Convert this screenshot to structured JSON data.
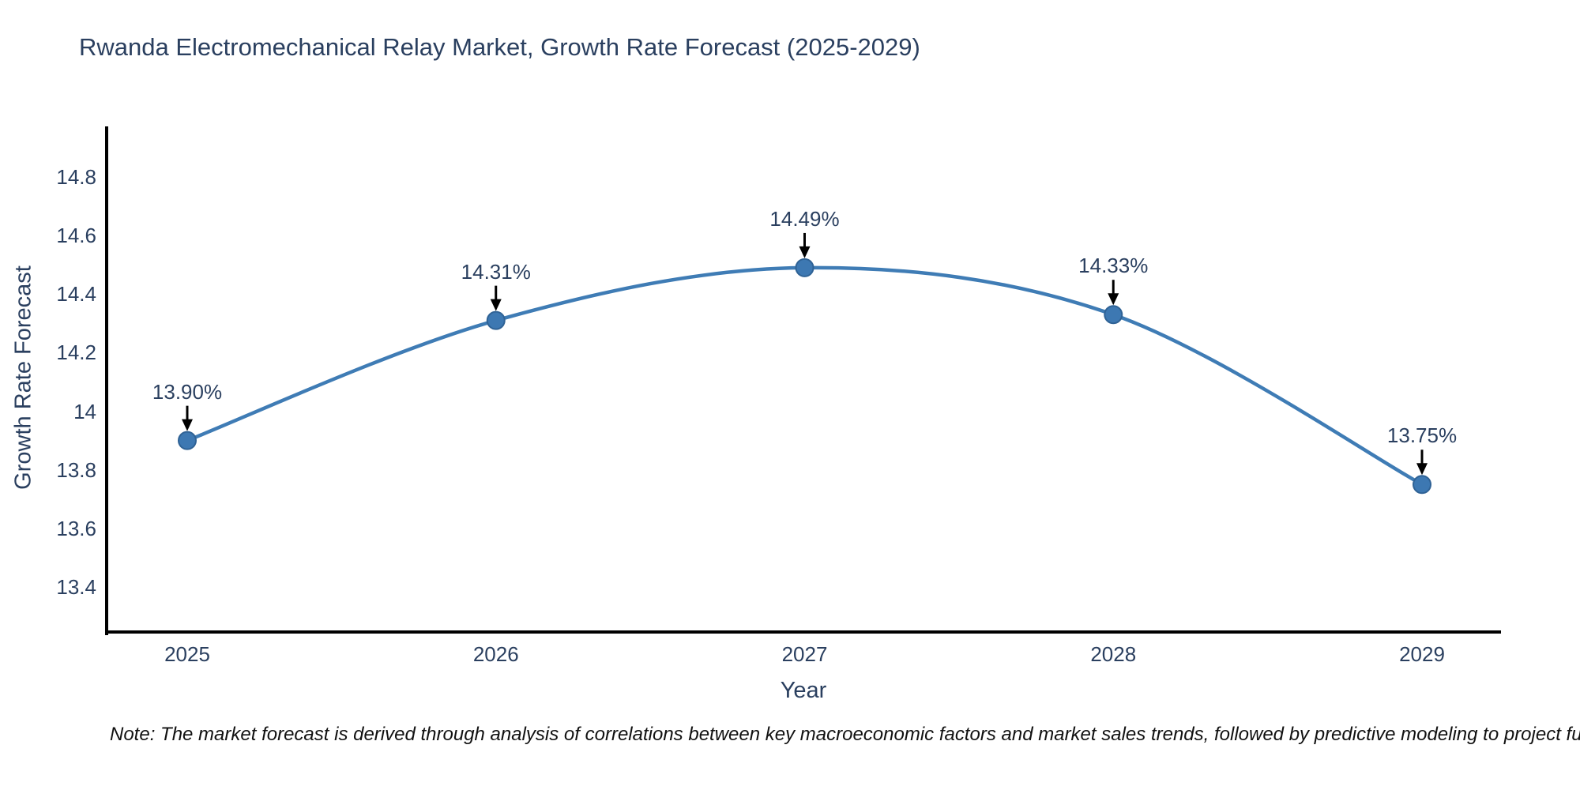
{
  "title": "Rwanda Electromechanical Relay Market, Growth Rate Forecast (2025-2029)",
  "note": "Note: The market forecast is derived through analysis of correlations between key macroeconomic factors and market sales trends, followed by predictive modeling to project future sal",
  "chart_data": {
    "type": "line",
    "title": "Rwanda Electromechanical Relay Market, Growth Rate Forecast (2025-2029)",
    "xlabel": "Year",
    "ylabel": "Growth Rate Forecast",
    "x": [
      2025,
      2026,
      2027,
      2028,
      2029
    ],
    "categories": [
      "2025",
      "2026",
      "2027",
      "2028",
      "2029"
    ],
    "values": [
      13.9,
      14.31,
      14.49,
      14.33,
      13.75
    ],
    "data_labels": [
      "13.90%",
      "14.31%",
      "14.49%",
      "14.33%",
      "13.75%"
    ],
    "yticks": [
      13.4,
      13.6,
      13.8,
      14,
      14.2,
      14.4,
      14.6,
      14.8
    ],
    "ytick_labels": [
      "13.4",
      "13.6",
      "13.8",
      "14",
      "14.2",
      "14.4",
      "14.6",
      "14.8"
    ],
    "ylim": [
      13.25,
      14.97
    ],
    "xlim": [
      2024.74,
      2029.26
    ],
    "grid": false,
    "legend": "none",
    "line_shape": "spline",
    "line_color": "#3f7cb5",
    "marker_color": "#3d78b2",
    "marker_edge_color": "#2f6295",
    "axis_color": "#000000",
    "text_color": "#2a3f5f",
    "annotation_arrow_color": "#000000"
  }
}
